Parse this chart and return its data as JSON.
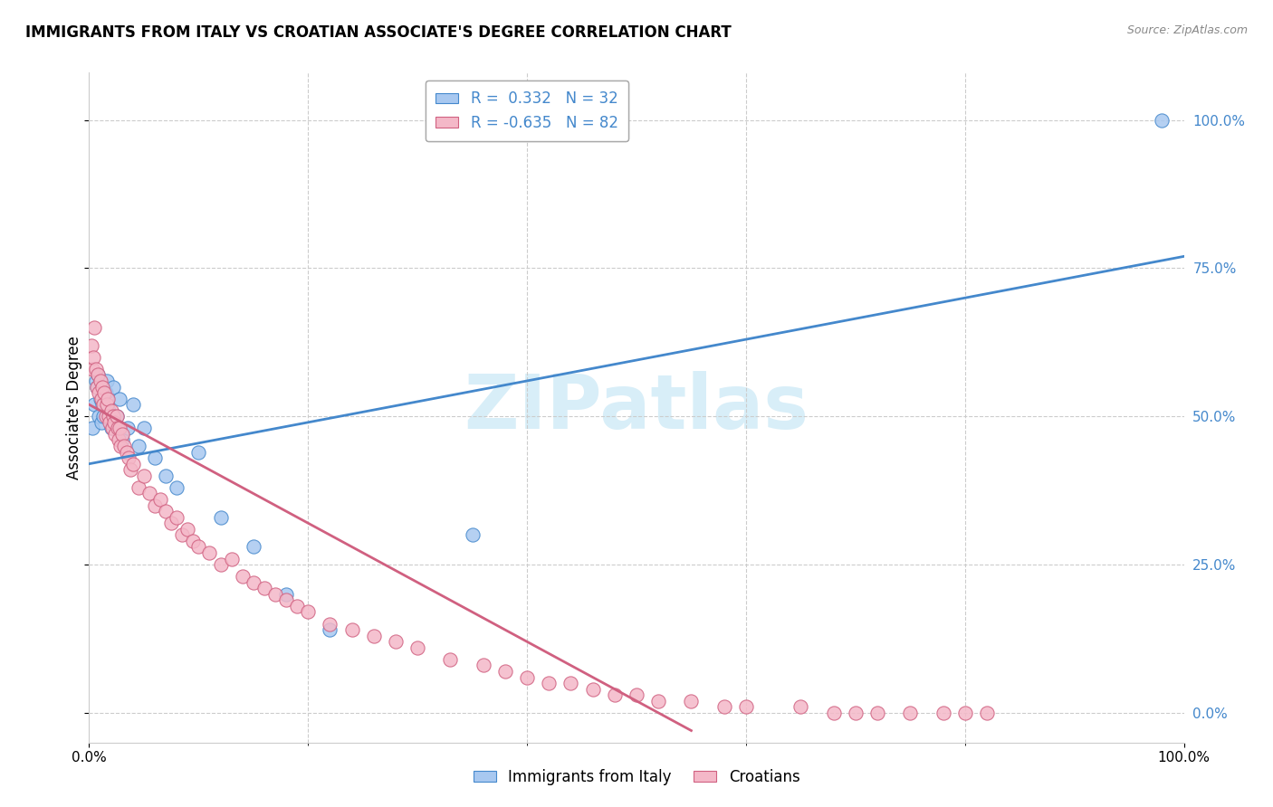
{
  "title": "IMMIGRANTS FROM ITALY VS CROATIAN ASSOCIATE'S DEGREE CORRELATION CHART",
  "source": "Source: ZipAtlas.com",
  "ylabel": "Associate's Degree",
  "ytick_labels": [
    "0.0%",
    "25.0%",
    "50.0%",
    "75.0%",
    "100.0%"
  ],
  "ytick_values": [
    0,
    25,
    50,
    75,
    100
  ],
  "xtick_labels": [
    "0.0%",
    "100.0%"
  ],
  "xtick_values": [
    0,
    100
  ],
  "xlim": [
    0,
    100
  ],
  "ylim": [
    -5,
    108
  ],
  "legend_label1": "Immigrants from Italy",
  "legend_label2": "Croatians",
  "r1": 0.332,
  "n1": 32,
  "r2": -0.635,
  "n2": 82,
  "color1": "#a8c8f0",
  "color2": "#f4b8c8",
  "line_color1": "#4488cc",
  "line_color2": "#d06080",
  "watermark": "ZIPatlas",
  "watermark_color": "#d8eef8",
  "italy_x": [
    0.3,
    0.5,
    0.6,
    0.7,
    0.8,
    0.9,
    1.0,
    1.1,
    1.2,
    1.3,
    1.5,
    1.6,
    1.8,
    2.0,
    2.2,
    2.5,
    2.8,
    3.0,
    3.5,
    4.0,
    4.5,
    5.0,
    6.0,
    7.0,
    8.0,
    10.0,
    12.0,
    15.0,
    18.0,
    22.0,
    35.0,
    98.0
  ],
  "italy_y": [
    48,
    52,
    56,
    55,
    57,
    50,
    53,
    49,
    52,
    50,
    54,
    56,
    51,
    48,
    55,
    50,
    53,
    46,
    48,
    52,
    45,
    48,
    43,
    40,
    38,
    44,
    33,
    28,
    20,
    14,
    30,
    100
  ],
  "croatian_x": [
    0.2,
    0.3,
    0.4,
    0.5,
    0.6,
    0.7,
    0.8,
    0.9,
    1.0,
    1.1,
    1.2,
    1.3,
    1.4,
    1.5,
    1.6,
    1.7,
    1.8,
    1.9,
    2.0,
    2.1,
    2.2,
    2.3,
    2.4,
    2.5,
    2.6,
    2.7,
    2.8,
    2.9,
    3.0,
    3.2,
    3.4,
    3.6,
    3.8,
    4.0,
    4.5,
    5.0,
    5.5,
    6.0,
    6.5,
    7.0,
    7.5,
    8.0,
    8.5,
    9.0,
    9.5,
    10.0,
    11.0,
    12.0,
    13.0,
    14.0,
    15.0,
    16.0,
    17.0,
    18.0,
    19.0,
    20.0,
    22.0,
    24.0,
    26.0,
    28.0,
    30.0,
    33.0,
    36.0,
    38.0,
    40.0,
    42.0,
    44.0,
    46.0,
    48.0,
    50.0,
    52.0,
    55.0,
    58.0,
    60.0,
    65.0,
    68.0,
    70.0,
    72.0,
    75.0,
    78.0,
    80.0,
    82.0
  ],
  "croatian_y": [
    62,
    58,
    60,
    65,
    58,
    55,
    57,
    54,
    56,
    53,
    55,
    52,
    54,
    50,
    52,
    53,
    50,
    49,
    51,
    48,
    50,
    49,
    47,
    50,
    48,
    46,
    48,
    45,
    47,
    45,
    44,
    43,
    41,
    42,
    38,
    40,
    37,
    35,
    36,
    34,
    32,
    33,
    30,
    31,
    29,
    28,
    27,
    25,
    26,
    23,
    22,
    21,
    20,
    19,
    18,
    17,
    15,
    14,
    13,
    12,
    11,
    9,
    8,
    7,
    6,
    5,
    5,
    4,
    3,
    3,
    2,
    2,
    1,
    1,
    1,
    0,
    0,
    0,
    0,
    0,
    0,
    0
  ],
  "blue_trendline_x0": 0,
  "blue_trendline_y0": 42,
  "blue_trendline_x1": 100,
  "blue_trendline_y1": 77,
  "pink_trendline_x0": 0,
  "pink_trendline_y0": 52,
  "pink_trendline_x1": 55,
  "pink_trendline_y1": -3,
  "grid_x_ticks": [
    0,
    20,
    40,
    60,
    80,
    100
  ],
  "grid_y_ticks": [
    0,
    25,
    50,
    75,
    100
  ]
}
